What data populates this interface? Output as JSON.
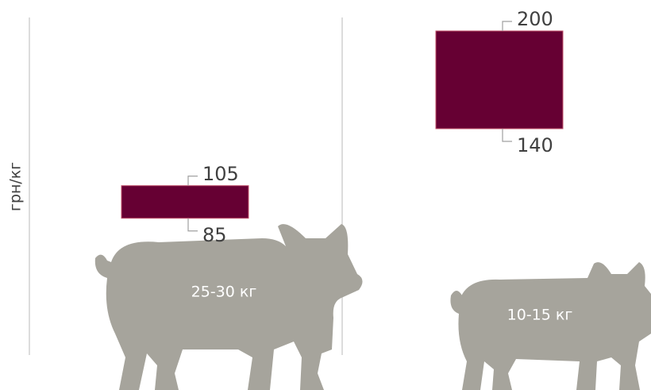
{
  "chart_data": {
    "type": "floating-bar",
    "y_label": "грн/кг",
    "categories": [
      "25-30 кг",
      "10-15 кг"
    ],
    "low": [
      85,
      140
    ],
    "high": [
      105,
      200
    ],
    "color": "#660033",
    "ylim": [
      0,
      210
    ]
  }
}
